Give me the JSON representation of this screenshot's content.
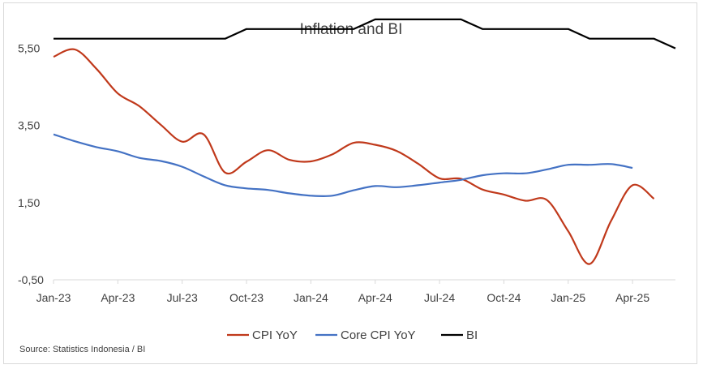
{
  "chart_data": {
    "type": "line",
    "title": "Inflation and BI",
    "source": "Source: Statistics Indonesia / BI",
    "xlabel": "",
    "ylabel": "",
    "x_labels": [
      "Jan-23",
      "Apr-23",
      "Jul-23",
      "Oct-23",
      "Jan-24",
      "Apr-24",
      "Jul-24",
      "Oct-24",
      "Jan-25",
      "Apr-25"
    ],
    "y_ticks": [
      "-0,50",
      "1,50",
      "3,50",
      "5,50"
    ],
    "y_tick_values": [
      -0.5,
      1.5,
      3.5,
      5.5
    ],
    "ylim": [
      -0.5,
      6.5
    ],
    "x_count": 30,
    "grid": false,
    "legend": "bottom",
    "series": [
      {
        "name": "CPI YoY",
        "color": "#c0391b",
        "values": [
          5.28,
          5.47,
          4.97,
          4.33,
          4.0,
          3.52,
          3.08,
          3.27,
          2.28,
          2.56,
          2.86,
          2.61,
          2.57,
          2.75,
          3.05,
          3.0,
          2.84,
          2.51,
          2.13,
          2.12,
          1.84,
          1.71,
          1.55,
          1.57,
          0.76,
          -0.09,
          1.03,
          1.95,
          1.6
        ]
      },
      {
        "name": "Core CPI YoY",
        "color": "#4472c4",
        "values": [
          3.27,
          3.09,
          2.94,
          2.83,
          2.66,
          2.58,
          2.43,
          2.18,
          1.95,
          1.87,
          1.83,
          1.74,
          1.68,
          1.68,
          1.82,
          1.93,
          1.9,
          1.95,
          2.02,
          2.09,
          2.21,
          2.26,
          2.26,
          2.36,
          2.48,
          2.48,
          2.5,
          2.4
        ]
      },
      {
        "name": "BI",
        "color": "#000000",
        "values": [
          5.75,
          5.75,
          5.75,
          5.75,
          5.75,
          5.75,
          5.75,
          5.75,
          5.75,
          6.0,
          6.0,
          6.0,
          6.0,
          6.0,
          6.0,
          6.25,
          6.25,
          6.25,
          6.25,
          6.25,
          6.0,
          6.0,
          6.0,
          6.0,
          6.0,
          5.75,
          5.75,
          5.75,
          5.75,
          5.5
        ]
      }
    ]
  }
}
